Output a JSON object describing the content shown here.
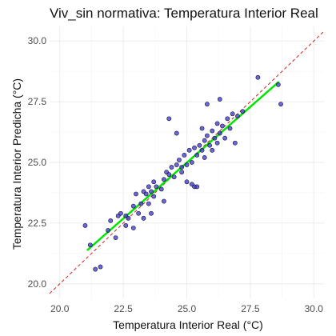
{
  "chart_data": {
    "type": "scatter",
    "title": "Viv_sin normativa: Temperatura Interior Real",
    "xlabel": "Temperatura Interior Real (°C)",
    "ylabel": "Temperatura Interior Predicha (°C)",
    "xlim": [
      19.6,
      30.4
    ],
    "ylim": [
      19.4,
      30.6
    ],
    "x_ticks": [
      "20.0",
      "22.5",
      "25.0",
      "27.5",
      "30.0"
    ],
    "y_ticks": [
      "20.0",
      "22.5",
      "25.0",
      "27.5",
      "30.0"
    ],
    "x_tick_values": [
      20.0,
      22.5,
      25.0,
      27.5,
      30.0
    ],
    "y_tick_values": [
      20.0,
      22.5,
      25.0,
      27.5,
      30.0
    ],
    "grid": true,
    "point_color": "#3b33cc",
    "point_edge": "#111133",
    "fit_color": "#00e600",
    "identity_color": "#cc2222",
    "identity_line": {
      "x": [
        19.6,
        30.4
      ],
      "y": [
        19.6,
        30.4
      ]
    },
    "fit_line": {
      "x": [
        21.1,
        28.6
      ],
      "y": [
        21.4,
        28.3
      ]
    },
    "points": [
      [
        21.0,
        22.4
      ],
      [
        21.2,
        21.6
      ],
      [
        21.4,
        20.6
      ],
      [
        21.6,
        20.7
      ],
      [
        21.9,
        22.2
      ],
      [
        22.0,
        22.6
      ],
      [
        22.2,
        21.9
      ],
      [
        22.3,
        22.8
      ],
      [
        22.4,
        22.9
      ],
      [
        22.6,
        22.4
      ],
      [
        22.6,
        22.8
      ],
      [
        22.7,
        22.7
      ],
      [
        22.9,
        23.2
      ],
      [
        22.9,
        22.3
      ],
      [
        23.0,
        23.7
      ],
      [
        23.1,
        22.9
      ],
      [
        23.2,
        23.3
      ],
      [
        23.3,
        22.7
      ],
      [
        23.3,
        23.8
      ],
      [
        23.4,
        23.7
      ],
      [
        23.5,
        23.3
      ],
      [
        23.5,
        24.0
      ],
      [
        23.6,
        22.9
      ],
      [
        23.6,
        23.8
      ],
      [
        23.7,
        24.2
      ],
      [
        23.7,
        23.6
      ],
      [
        23.8,
        24.0
      ],
      [
        24.0,
        23.9
      ],
      [
        24.1,
        24.3
      ],
      [
        24.1,
        23.4
      ],
      [
        24.2,
        24.6
      ],
      [
        24.3,
        24.5
      ],
      [
        24.3,
        26.8
      ],
      [
        24.4,
        24.8
      ],
      [
        24.5,
        24.4
      ],
      [
        24.6,
        24.9
      ],
      [
        24.6,
        26.2
      ],
      [
        24.7,
        25.1
      ],
      [
        24.8,
        24.8
      ],
      [
        24.8,
        24.6
      ],
      [
        24.9,
        25.3
      ],
      [
        25.0,
        24.9
      ],
      [
        25.0,
        24.2
      ],
      [
        25.1,
        25.5
      ],
      [
        25.2,
        25.0
      ],
      [
        25.2,
        24.1
      ],
      [
        25.3,
        25.6
      ],
      [
        25.3,
        24.0
      ],
      [
        25.4,
        25.3
      ],
      [
        25.4,
        24.0
      ],
      [
        25.5,
        25.7
      ],
      [
        25.6,
        25.5
      ],
      [
        25.6,
        26.4
      ],
      [
        25.7,
        25.9
      ],
      [
        25.7,
        25.2
      ],
      [
        25.8,
        26.1
      ],
      [
        25.8,
        27.4
      ],
      [
        25.9,
        25.7
      ],
      [
        26.0,
        26.3
      ],
      [
        26.0,
        25.5
      ],
      [
        26.1,
        26.0
      ],
      [
        26.2,
        26.6
      ],
      [
        26.2,
        25.8
      ],
      [
        26.3,
        27.6
      ],
      [
        26.3,
        26.2
      ],
      [
        26.4,
        26.5
      ],
      [
        26.5,
        26.0
      ],
      [
        26.6,
        26.8
      ],
      [
        26.7,
        26.4
      ],
      [
        26.8,
        27.0
      ],
      [
        26.9,
        25.8
      ],
      [
        27.0,
        26.9
      ],
      [
        27.2,
        27.1
      ],
      [
        27.8,
        28.5
      ],
      [
        28.6,
        28.2
      ],
      [
        28.7,
        27.4
      ]
    ]
  }
}
